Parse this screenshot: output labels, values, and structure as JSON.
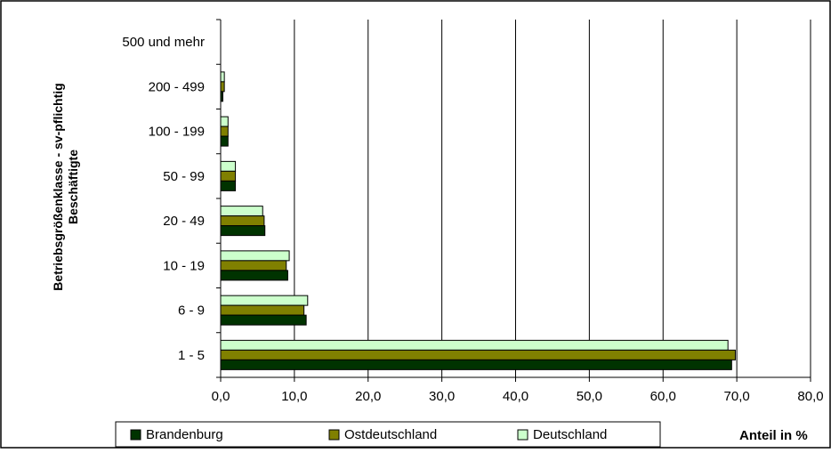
{
  "chart_data": {
    "type": "bar",
    "orientation": "horizontal",
    "categories": [
      "1 - 5",
      "6 - 9",
      "10 - 19",
      "20 - 49",
      "50 - 99",
      "100 - 199",
      "200 - 499",
      "500 und mehr"
    ],
    "series": [
      {
        "name": "Brandenburg",
        "color": "#003300",
        "values": [
          69.3,
          11.6,
          9.1,
          6.0,
          2.0,
          1.0,
          0.3,
          0.0
        ]
      },
      {
        "name": "Ostdeutschland",
        "color": "#808000",
        "values": [
          69.8,
          11.3,
          8.9,
          5.9,
          2.0,
          1.0,
          0.5,
          0.0
        ]
      },
      {
        "name": "Deutschland",
        "color": "#ccffcc",
        "values": [
          68.8,
          11.8,
          9.3,
          5.7,
          2.0,
          1.0,
          0.5,
          0.0
        ]
      }
    ],
    "xlim": [
      0,
      80
    ],
    "xticks": [
      "0,0",
      "10,0",
      "20,0",
      "30,0",
      "40,0",
      "50,0",
      "60,0",
      "70,0",
      "80,0"
    ],
    "xlabel": "Anteil in %",
    "ylabel": [
      "Betriebsgrößenklasse - sv-pflichtig",
      "Beschäftigte"
    ],
    "grid": "vertical",
    "legend_position": "bottom"
  }
}
